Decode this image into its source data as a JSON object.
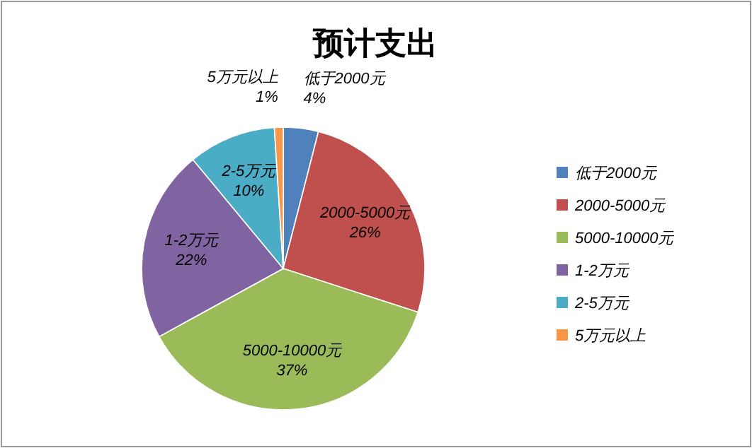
{
  "chart_data": {
    "type": "pie",
    "title": "预计支出",
    "categories": [
      "低于2000元",
      "2000-5000元",
      "5000-10000元",
      "1-2万元",
      "2-5万元",
      "5万元以上"
    ],
    "values": [
      4,
      26,
      37,
      22,
      10,
      1
    ],
    "colors": [
      "#4f81bd",
      "#c0504d",
      "#9bbb59",
      "#8064a2",
      "#4bacc6",
      "#f79646"
    ],
    "value_labels": [
      "4%",
      "26%",
      "37%",
      "22%",
      "10%",
      "1%"
    ],
    "legend": "right"
  }
}
